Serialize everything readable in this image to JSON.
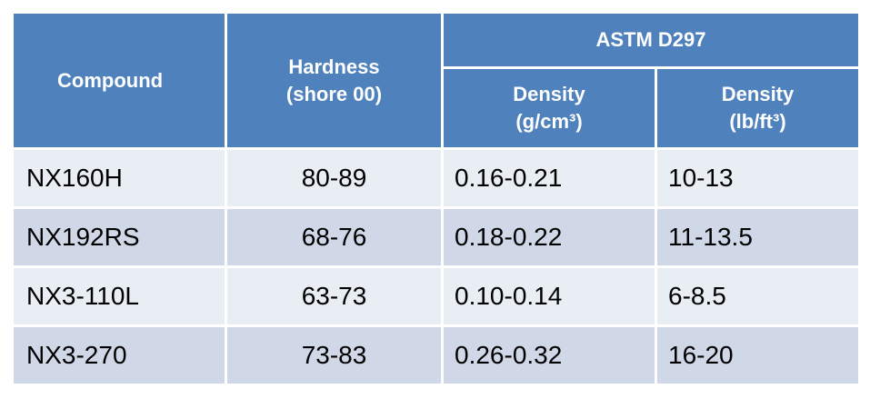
{
  "table": {
    "headers": {
      "compound": "Compound",
      "hardness_line1": "Hardness",
      "hardness_line2": "(shore 00)",
      "group": "ASTM D297",
      "density_g_line1": "Density",
      "density_g_line2": "(g/cm³)",
      "density_lb_line1": "Density",
      "density_lb_line2": "(lb/ft³)"
    },
    "rows": [
      {
        "compound": "NX160H",
        "hardness": "80-89",
        "density_g": "0.16-0.21",
        "density_lb": "10-13"
      },
      {
        "compound": "NX192RS",
        "hardness": "68-76",
        "density_g": "0.18-0.22",
        "density_lb": "11-13.5"
      },
      {
        "compound": "NX3-110L",
        "hardness": "63-73",
        "density_g": "0.10-0.14",
        "density_lb": "6-8.5"
      },
      {
        "compound": "NX3-270",
        "hardness": "73-83",
        "density_g": "0.26-0.32",
        "density_lb": "16-20"
      }
    ]
  },
  "colors": {
    "header_bg": "#4f81bd",
    "row_light": "#e9edf4",
    "row_dark": "#d0d8e8",
    "border": "#ffffff"
  }
}
